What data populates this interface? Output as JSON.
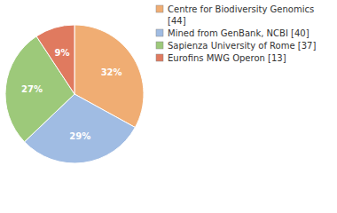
{
  "chart_data": {
    "type": "pie",
    "categories": [
      "Centre for Biodiversity Genomics [44]",
      "Mined from GenBank, NCBI [40]",
      "Sapienza University of Rome [37]",
      "Eurofins MWG Operon [13]"
    ],
    "values": [
      32,
      29,
      27,
      9
    ],
    "value_labels": [
      "32%",
      "29%",
      "27%",
      "9%"
    ],
    "colors": [
      "#f0ad73",
      "#a0bce3",
      "#9dc97a",
      "#e07a5f"
    ],
    "data_labels": true
  }
}
